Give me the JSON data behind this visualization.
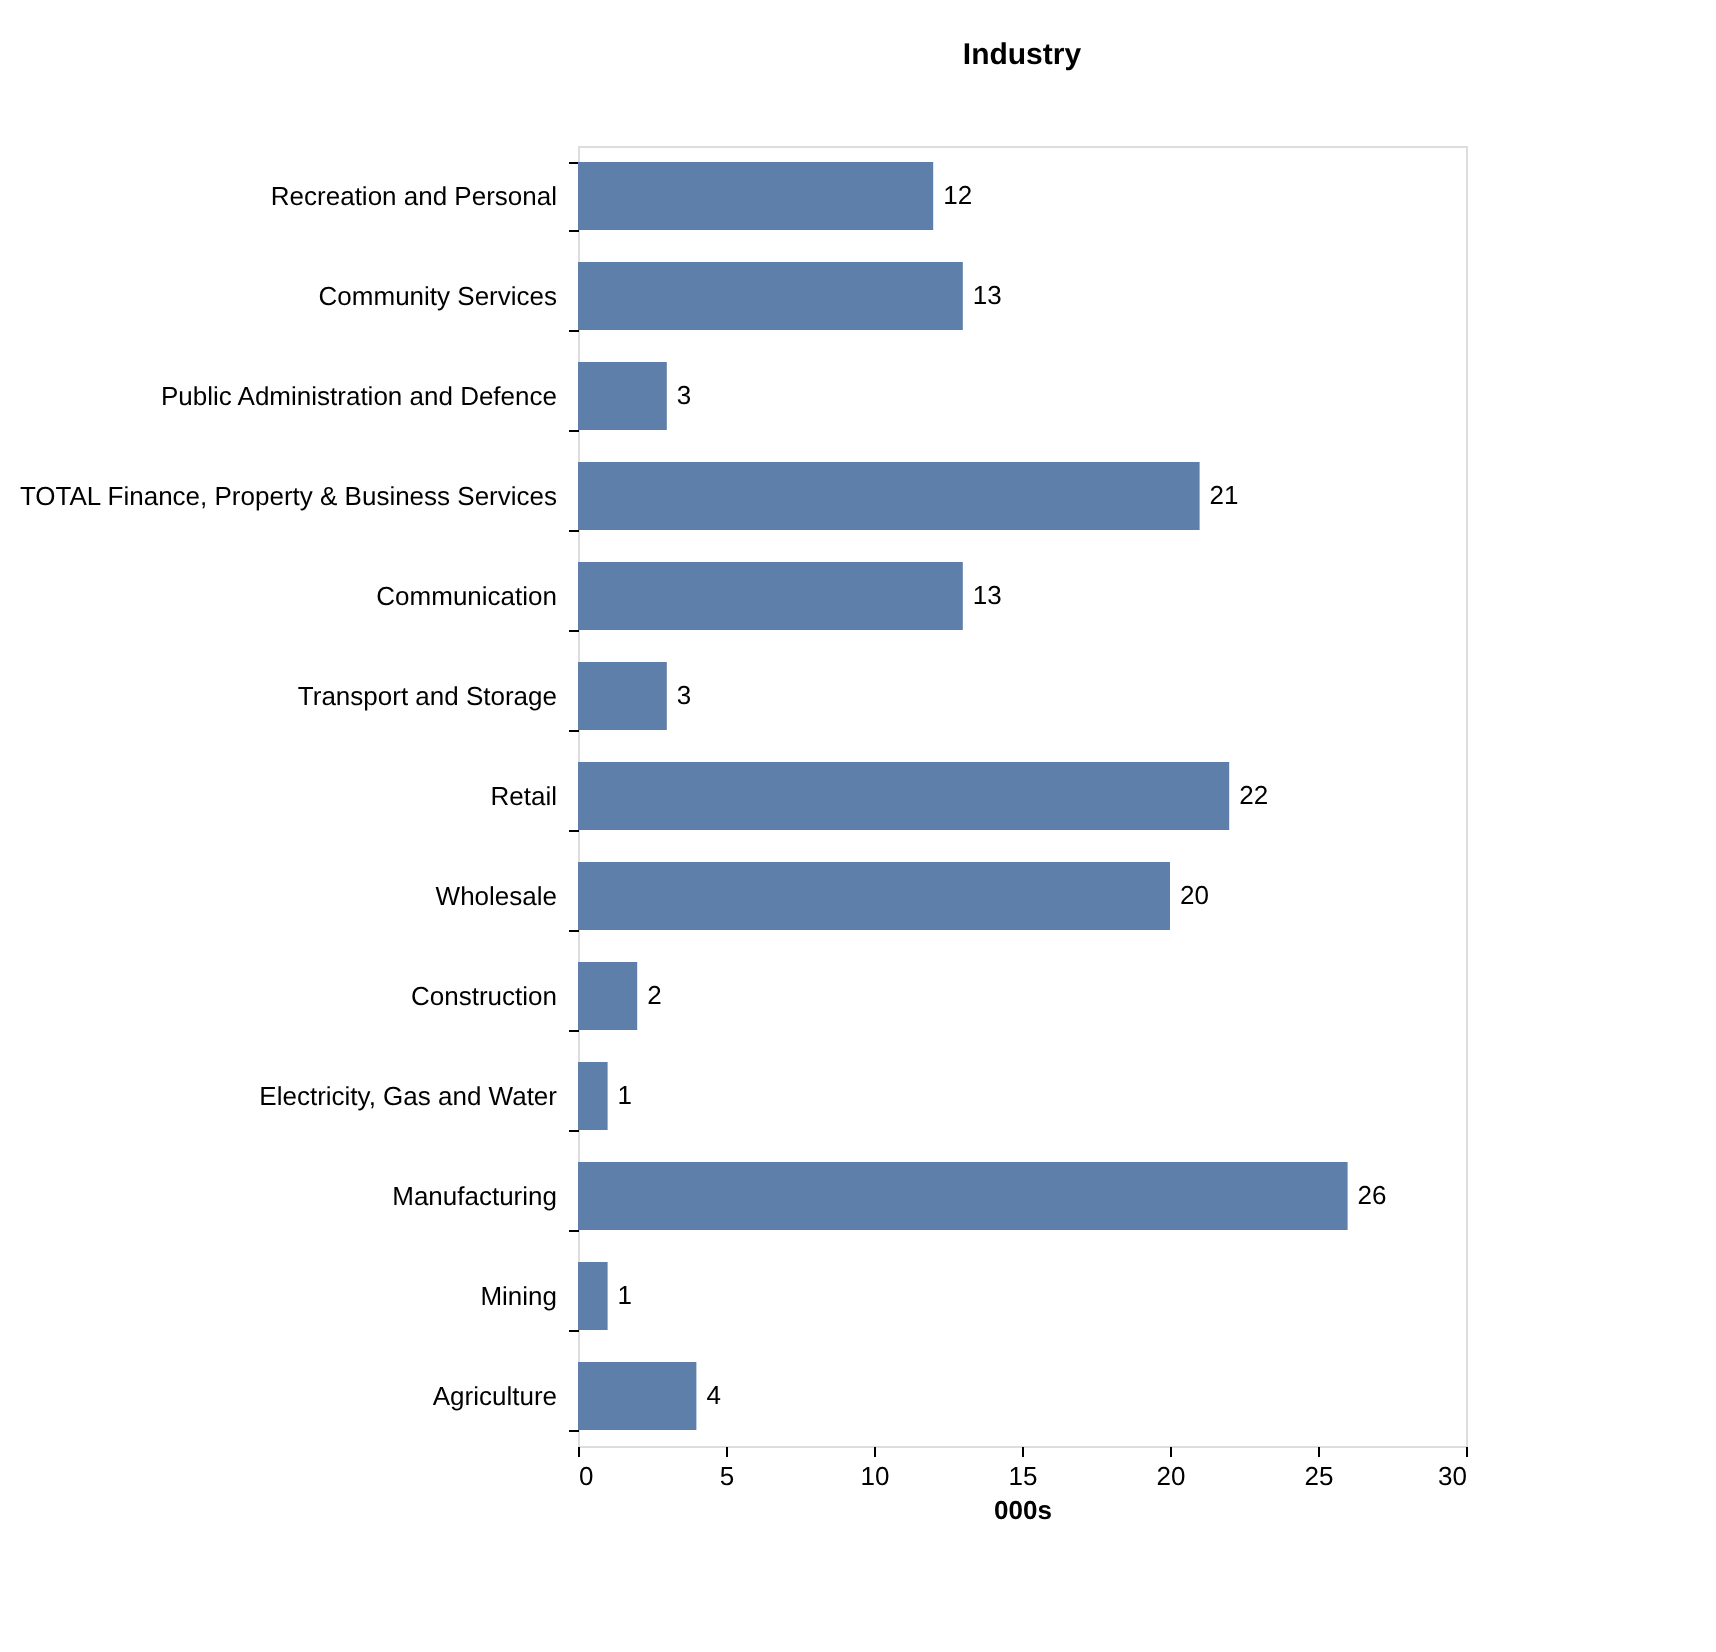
{
  "chart_data": {
    "type": "bar",
    "orientation": "horizontal",
    "title": "Industry",
    "xlabel": "000s",
    "categories": [
      "Recreation and Personal",
      "Community Services",
      "Public Administration and Defence",
      "TOTAL Finance, Property & Business Services",
      "Communication",
      "Transport and Storage",
      "Retail",
      "Wholesale",
      "Construction",
      "Electricity, Gas and Water",
      "Manufacturing",
      "Mining",
      "Agriculture"
    ],
    "values": [
      12,
      13,
      3,
      21,
      13,
      3,
      22,
      20,
      2,
      1,
      26,
      1,
      4
    ],
    "color": "#5f7fab",
    "xlim": [
      0,
      30
    ],
    "xticks": [
      0,
      5,
      10,
      15,
      20,
      25,
      30
    ],
    "grid": false,
    "data_labels": true
  }
}
